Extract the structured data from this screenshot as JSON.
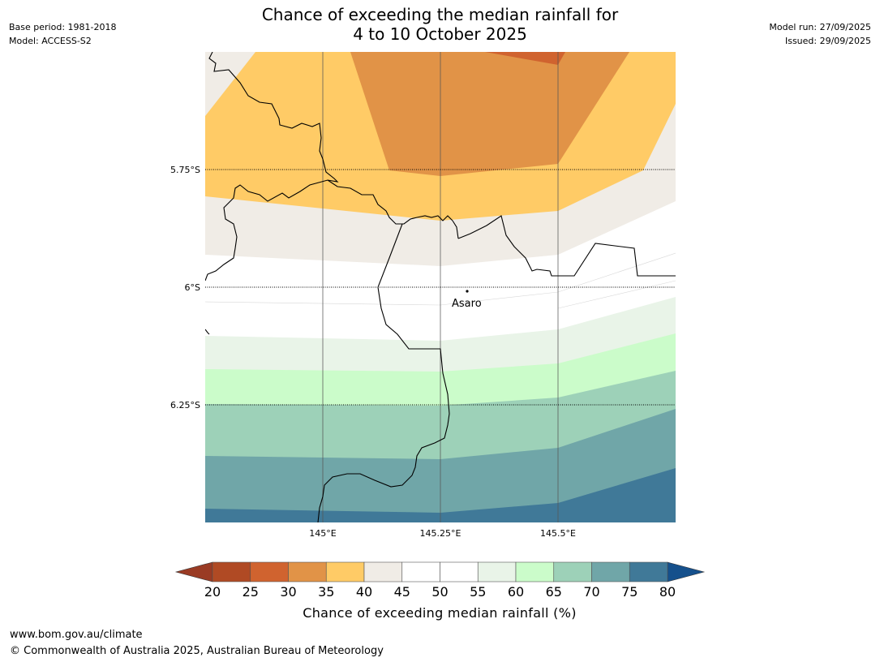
{
  "title": {
    "line1": "Chance of exceeding the median rainfall for",
    "line2": "4 to 10 October 2025"
  },
  "meta_left": {
    "base_period": "Base period: 1981-2018",
    "model": "Model: ACCESS-S2"
  },
  "meta_right": {
    "model_run": "Model run: 27/09/2025",
    "issued": "Issued: 29/09/2025"
  },
  "map": {
    "lat_labels": [
      "5.75°S",
      "6°S",
      "6.25°S"
    ],
    "lon_labels": [
      "145°E",
      "145.25°E",
      "145.5°E"
    ],
    "place": "Asaro",
    "lat_range": [
      -6.5,
      -5.5
    ],
    "lon_range": [
      144.75,
      145.75
    ],
    "bin_colors": {
      "20-25": "#b04a24",
      "25-30": "#d0632f",
      "30-35": "#e19347",
      "35-40": "#ffcb66",
      "40-45": "#f0ece6",
      "45-55": "#ffffff",
      "55-60": "#e9f4e8",
      "60-65": "#cbfcca",
      "65-70": "#9dd1b8",
      "70-75": "#70a6a8",
      "75-80": "#407998"
    }
  },
  "colorbar": {
    "ticks": [
      "20",
      "25",
      "30",
      "35",
      "40",
      "45",
      "50",
      "55",
      "60",
      "65",
      "70",
      "75",
      "80"
    ],
    "colors": [
      "#b04a24",
      "#d0632f",
      "#e19347",
      "#ffcb66",
      "#f0ece6",
      "#ffffff",
      "#ffffff",
      "#e9f4e8",
      "#cbfcca",
      "#9dd1b8",
      "#70a6a8",
      "#407998"
    ],
    "under_color": "#9a3b24",
    "over_color": "#15508c",
    "label": "Chance of exceeding median rainfall (%)"
  },
  "footer": {
    "url": "www.bom.gov.au/climate",
    "copyright": "© Commonwealth of Australia 2025, Australian Bureau of Meteorology"
  }
}
